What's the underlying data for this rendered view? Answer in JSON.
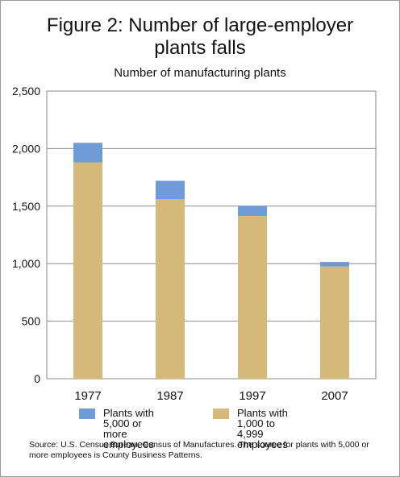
{
  "chart_data": {
    "type": "bar",
    "stacked": true,
    "title": "Figure 2:  Number of large-employer plants falls",
    "title_lines": [
      "Figure 2:  Number of large-employer",
      "plants falls"
    ],
    "subtitle": "Number of manufacturing plants",
    "categories": [
      "1977",
      "1987",
      "1997",
      "2007"
    ],
    "series": [
      {
        "name": "Plants with 1,000  to 4,999 employees",
        "color": "#d4b97a",
        "values": [
          1880,
          1560,
          1415,
          975
        ]
      },
      {
        "name": "Plants with 5,000 or more employees",
        "color": "#6f9bd6",
        "values": [
          170,
          160,
          85,
          40
        ]
      }
    ],
    "ylim": [
      0,
      2500
    ],
    "yticks": [
      0,
      500,
      1000,
      1500,
      2000,
      2500
    ],
    "ytick_labels": [
      "0",
      "500",
      "1,000",
      "1,500",
      "2,000",
      "2,500"
    ],
    "grid": true,
    "legend_position": "bottom",
    "legend": [
      {
        "color": "#6f9bd6",
        "lines": [
          "Plants with 5,000 or",
          "more employees"
        ]
      },
      {
        "color": "#d4b97a",
        "lines": [
          "Plants with 1,000  to 4,999",
          "employees"
        ]
      }
    ]
  },
  "source_note": "Source: U.S. Census Bureau, Census of Manufactures. The source for plants with 5,000 or more employees is County Business Patterns."
}
